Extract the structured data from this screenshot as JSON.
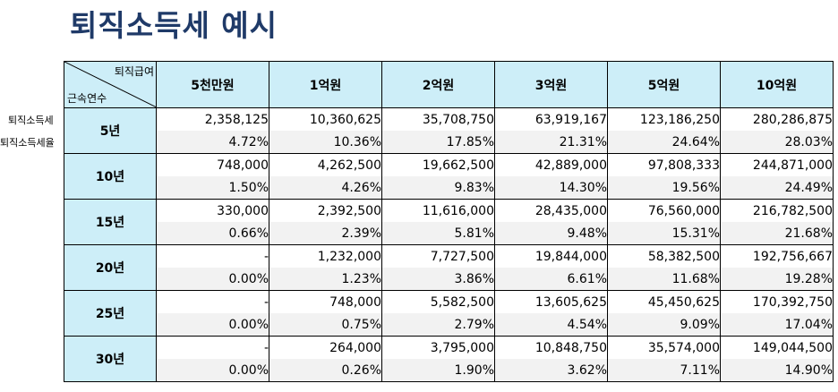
{
  "title": "퇴직소득세 예시",
  "side_labels": {
    "tax": "퇴직소득세",
    "rate": "퇴직소득세율"
  },
  "corner": {
    "top": "퇴직급여",
    "bottom": "근속연수"
  },
  "columns": [
    "5천만원",
    "1억원",
    "2억원",
    "3억원",
    "5억원",
    "10억원"
  ],
  "rows": [
    {
      "years": "5년",
      "tax": [
        "2,358,125",
        "10,360,625",
        "35,708,750",
        "63,919,167",
        "123,186,250",
        "280,286,875"
      ],
      "rate": [
        "4.72%",
        "10.36%",
        "17.85%",
        "21.31%",
        "24.64%",
        "28.03%"
      ]
    },
    {
      "years": "10년",
      "tax": [
        "748,000",
        "4,262,500",
        "19,662,500",
        "42,889,000",
        "97,808,333",
        "244,871,000"
      ],
      "rate": [
        "1.50%",
        "4.26%",
        "9.83%",
        "14.30%",
        "19.56%",
        "24.49%"
      ]
    },
    {
      "years": "15년",
      "tax": [
        "330,000",
        "2,392,500",
        "11,616,000",
        "28,435,000",
        "76,560,000",
        "216,782,500"
      ],
      "rate": [
        "0.66%",
        "2.39%",
        "5.81%",
        "9.48%",
        "15.31%",
        "21.68%"
      ]
    },
    {
      "years": "20년",
      "tax": [
        "-",
        "1,232,000",
        "7,727,500",
        "19,844,000",
        "58,382,500",
        "192,756,667"
      ],
      "rate": [
        "0.00%",
        "1.23%",
        "3.86%",
        "6.61%",
        "11.68%",
        "19.28%"
      ]
    },
    {
      "years": "25년",
      "tax": [
        "-",
        "748,000",
        "5,582,500",
        "13,605,625",
        "45,450,625",
        "170,392,750"
      ],
      "rate": [
        "0.00%",
        "0.75%",
        "2.79%",
        "4.54%",
        "9.09%",
        "17.04%"
      ]
    },
    {
      "years": "30년",
      "tax": [
        "-",
        "264,000",
        "3,795,000",
        "10,848,750",
        "35,574,000",
        "149,044,500"
      ],
      "rate": [
        "0.00%",
        "0.26%",
        "1.90%",
        "3.62%",
        "7.11%",
        "14.90%"
      ]
    }
  ]
}
